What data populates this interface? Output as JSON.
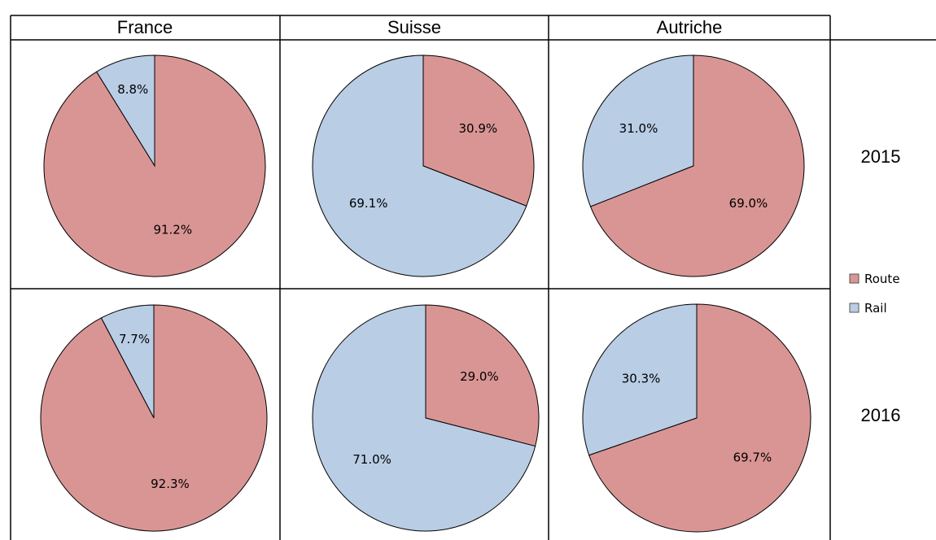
{
  "table": {
    "columns": [
      "France",
      "Suisse",
      "Autriche"
    ],
    "rows": [
      "2015",
      "2016"
    ]
  },
  "legend": [
    {
      "label": "Route",
      "color": "#d99594"
    },
    {
      "label": "Rail",
      "color": "#b9cde5"
    }
  ],
  "chart_data": [
    {
      "type": "pie",
      "country": "France",
      "year": "2015",
      "categories": [
        "Route",
        "Rail"
      ],
      "values": [
        91.2,
        8.8
      ],
      "labels": [
        "91.2%",
        "8.8%"
      ]
    },
    {
      "type": "pie",
      "country": "Suisse",
      "year": "2015",
      "categories": [
        "Route",
        "Rail"
      ],
      "values": [
        30.9,
        69.1
      ],
      "labels": [
        "30.9%",
        "69.1%"
      ]
    },
    {
      "type": "pie",
      "country": "Autriche",
      "year": "2015",
      "categories": [
        "Route",
        "Rail"
      ],
      "values": [
        69.0,
        31.0
      ],
      "labels": [
        "69.0%",
        "31.0%"
      ]
    },
    {
      "type": "pie",
      "country": "France",
      "year": "2016",
      "categories": [
        "Route",
        "Rail"
      ],
      "values": [
        92.3,
        7.7
      ],
      "labels": [
        "92.3%",
        "7.7%"
      ]
    },
    {
      "type": "pie",
      "country": "Suisse",
      "year": "2016",
      "categories": [
        "Route",
        "Rail"
      ],
      "values": [
        29.0,
        71.0
      ],
      "labels": [
        "29.0%",
        "71.0%"
      ]
    },
    {
      "type": "pie",
      "country": "Autriche",
      "year": "2016",
      "categories": [
        "Route",
        "Rail"
      ],
      "values": [
        69.7,
        30.3
      ],
      "labels": [
        "69.7%",
        "30.3%"
      ]
    }
  ]
}
